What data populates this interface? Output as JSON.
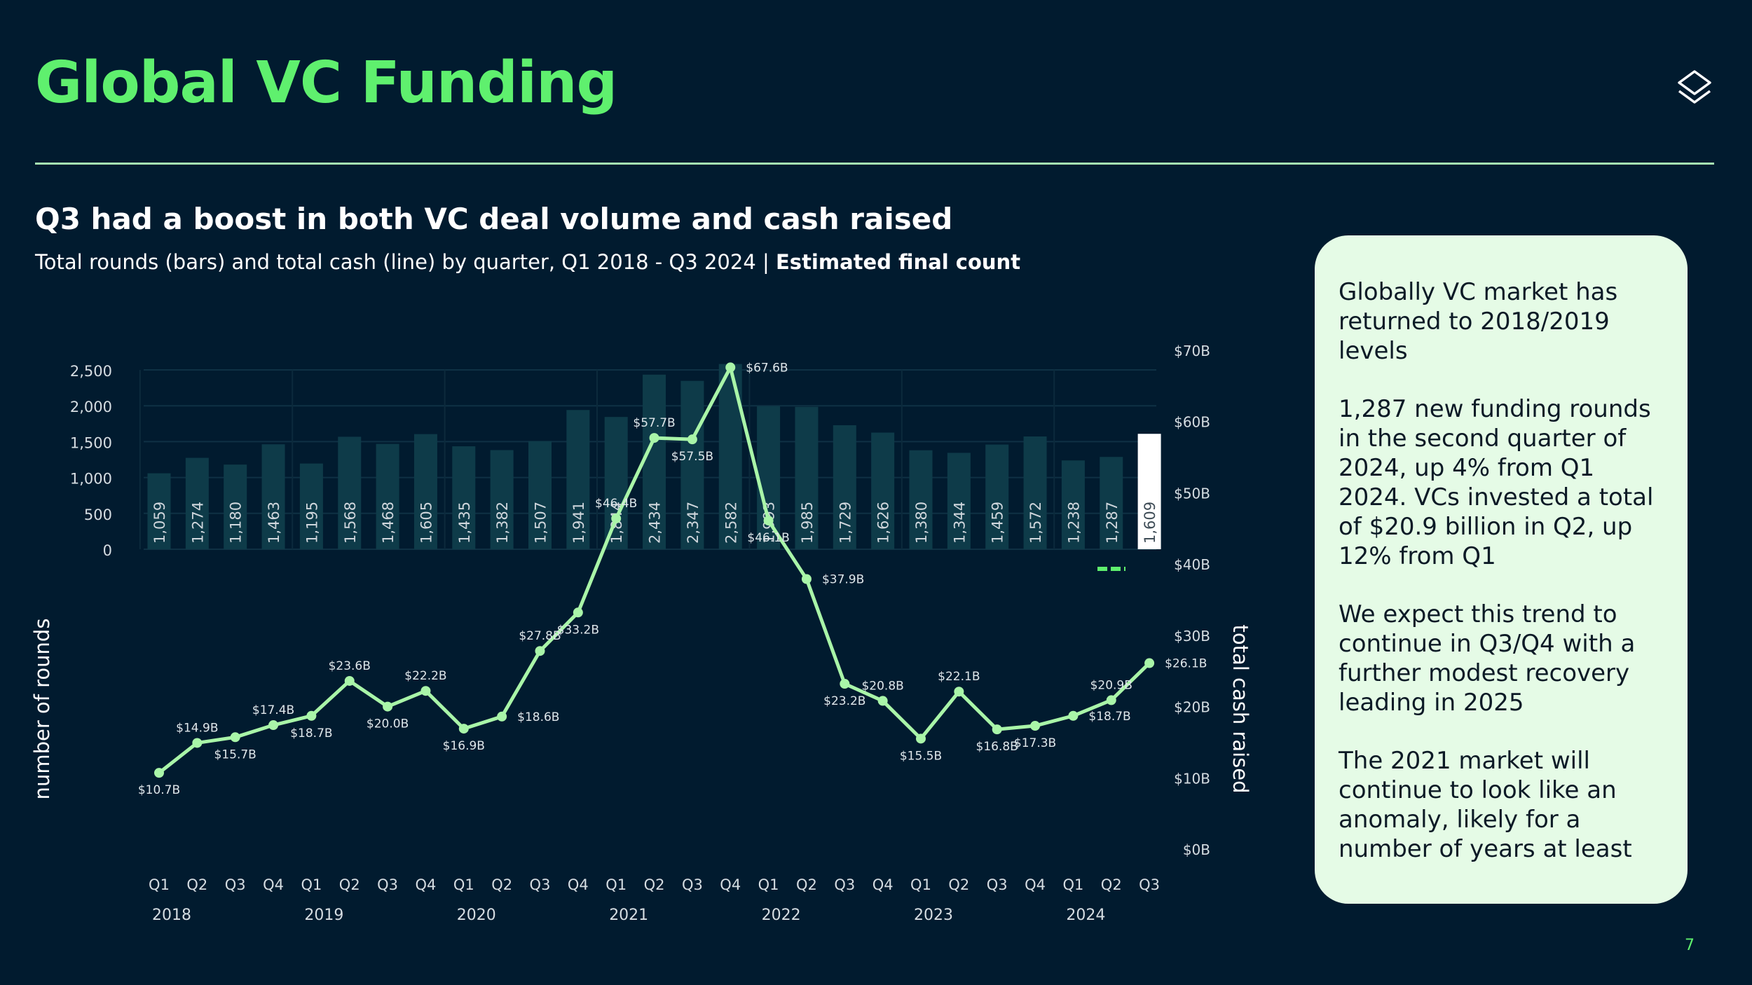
{
  "page": {
    "title": "Global VC Funding",
    "headline": "Q3 had a boost in both VC deal volume and cash raised",
    "subtitle": "Total rounds (bars) and total cash (line) by quarter, Q1 2018 - Q3 2024 |",
    "subtitle_bold": "Estimated final count",
    "page_number": "7",
    "logo_icon": "stacked-layers-icon"
  },
  "panel": {
    "paragraphs": [
      "Globally VC market has returned to 2018/2019 levels",
      "1,287 new funding rounds in the second quarter of 2024, up 4% from Q1 2024. VCs invested a total of $20.9 billion in Q2, up 12% from Q1",
      "We expect this trend to continue in Q3/Q4 with a further modest recovery leading in 2025",
      "The 2021 market will continue to look like an anomaly, likely for a number of years at least"
    ]
  },
  "chart_data": {
    "type": "bar",
    "title": "",
    "ylabel": "number of rounds",
    "y2label": "total cash raised",
    "ylim": [
      0,
      2500
    ],
    "y2lim": [
      0,
      70
    ],
    "y_ticks": [
      "0",
      "500",
      "1,000",
      "1,500",
      "2,000",
      "2,500"
    ],
    "y2_ticks": [
      "$0B",
      "$10B",
      "$20B",
      "$30B",
      "$40B",
      "$50B",
      "$60B",
      "$70B"
    ],
    "quarters": [
      "Q1",
      "Q2",
      "Q3",
      "Q4",
      "Q1",
      "Q2",
      "Q3",
      "Q4",
      "Q1",
      "Q2",
      "Q3",
      "Q4",
      "Q1",
      "Q2",
      "Q3",
      "Q4",
      "Q1",
      "Q2",
      "Q3",
      "Q4",
      "Q1",
      "Q2",
      "Q3",
      "Q4",
      "Q1",
      "Q2",
      "Q3"
    ],
    "years": [
      {
        "label": "2018",
        "index": 0
      },
      {
        "label": "2019",
        "index": 4
      },
      {
        "label": "2020",
        "index": 8
      },
      {
        "label": "2021",
        "index": 12
      },
      {
        "label": "2022",
        "index": 16
      },
      {
        "label": "2023",
        "index": 20
      },
      {
        "label": "2024",
        "index": 24
      }
    ],
    "series": [
      {
        "name": "Total rounds",
        "kind": "bar",
        "color": "#0e3b49",
        "values": [
          1059,
          1274,
          1180,
          1463,
          1195,
          1568,
          1468,
          1605,
          1435,
          1382,
          1507,
          1941,
          1844,
          2434,
          2347,
          2582,
          1993,
          1985,
          1729,
          1626,
          1380,
          1344,
          1459,
          1572,
          1238,
          1287,
          1609
        ],
        "labels": [
          "1,059",
          "1,274",
          "1,180",
          "1,463",
          "1,195",
          "1,568",
          "1,468",
          "1,605",
          "1,435",
          "1,382",
          "1,507",
          "1,941",
          "1,844",
          "2,434",
          "2,347",
          "2,582",
          "1,993",
          "1,985",
          "1,729",
          "1,626",
          "1,380",
          "1,344",
          "1,459",
          "1,572",
          "1,238",
          "1,287",
          "1,609"
        ],
        "highlight_last_color": "#ffffff"
      },
      {
        "name": "Total cash",
        "kind": "line",
        "color": "#a9f5a8",
        "values": [
          10.7,
          14.9,
          15.7,
          17.4,
          18.7,
          23.6,
          20.0,
          22.2,
          16.9,
          18.6,
          27.8,
          33.2,
          46.4,
          57.7,
          57.5,
          67.6,
          46.1,
          37.9,
          23.2,
          20.8,
          15.5,
          22.1,
          16.8,
          17.3,
          18.7,
          20.9,
          26.1
        ],
        "labels": [
          "$10.7B",
          "$14.9B",
          "$15.7B",
          "$17.4B",
          "$18.7B",
          "$23.6B",
          "$20.0B",
          "$22.2B",
          "$16.9B",
          "$18.6B",
          "$27.8B",
          "$33.2B",
          "$46.4B",
          "$57.7B",
          "$57.5B",
          "$67.6B",
          "$46.1B",
          "$37.9B",
          "$23.2B",
          "$20.8B",
          "$15.5B",
          "$22.1B",
          "$16.8B",
          "$17.3B",
          "$18.7B",
          "$20.9B",
          "$26.1B"
        ],
        "label_pos": [
          "below",
          "above",
          "below",
          "above",
          "below",
          "above",
          "below",
          "above",
          "below",
          "right",
          "above",
          "below",
          "above",
          "above",
          "below",
          "right",
          "below",
          "right",
          "below",
          "above",
          "below",
          "above",
          "below",
          "below",
          "right",
          "above",
          "right"
        ]
      }
    ],
    "estimated_marker_color": "#5ff06e"
  }
}
